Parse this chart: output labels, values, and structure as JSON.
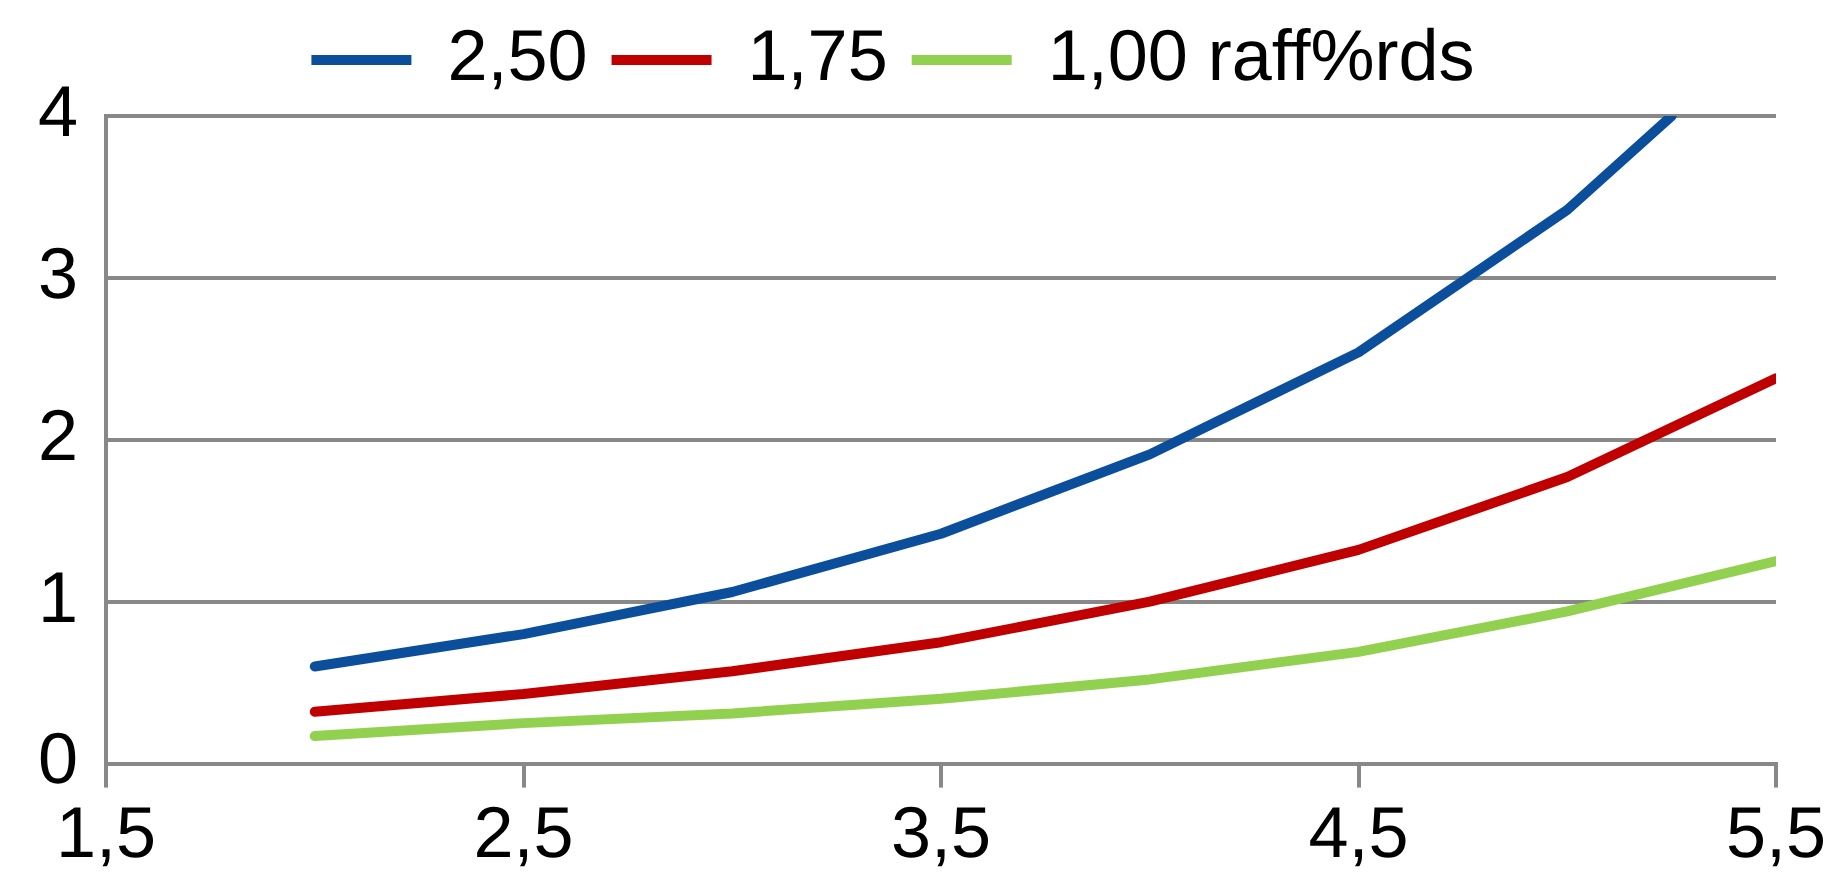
{
  "chart_data": {
    "type": "line",
    "x": [
      2,
      2.5,
      3,
      3.5,
      4,
      4.5,
      5,
      5.5
    ],
    "series": [
      {
        "name": "2,50",
        "color": "#0b4f9c",
        "x": [
          2,
          2.5,
          3,
          3.5,
          4,
          4.5,
          5,
          5.25
        ],
        "values": [
          0.6,
          0.8,
          1.06,
          1.42,
          1.91,
          2.54,
          3.42,
          4
        ]
      },
      {
        "name": "1,75",
        "color": "#c00000",
        "values": [
          0.32,
          0.43,
          0.57,
          0.75,
          1.0,
          1.32,
          1.77,
          2.38
        ]
      },
      {
        "name": "1,00 raff%rds",
        "color": "#92d050",
        "values": [
          0.17,
          0.25,
          0.31,
          0.4,
          0.52,
          0.69,
          0.94,
          1.25
        ]
      }
    ],
    "xlim": [
      1.5,
      5.5
    ],
    "xticks": [
      {
        "value": 1.5,
        "label": "1,5"
      },
      {
        "value": 2.5,
        "label": "2,5"
      },
      {
        "value": 3.5,
        "label": "3,5"
      },
      {
        "value": 4.5,
        "label": "4,5"
      },
      {
        "value": 5.5,
        "label": "5,5"
      }
    ],
    "ylim": [
      0,
      4
    ],
    "yticks": [
      0,
      1,
      2,
      3,
      4
    ],
    "grid": "y",
    "legend": "top",
    "marker": "none",
    "line_style": "solid"
  }
}
